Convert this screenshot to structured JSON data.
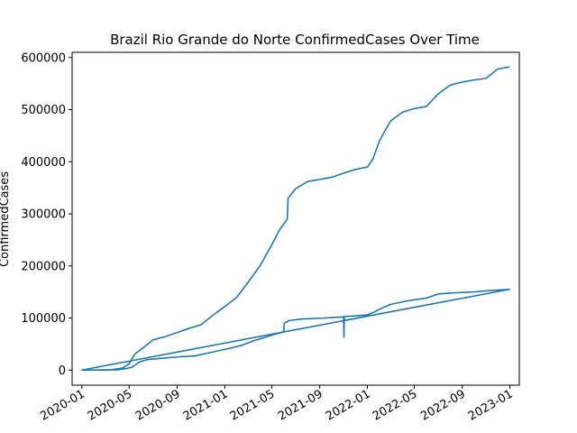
{
  "chart_data": {
    "type": "line",
    "title": "Brazil Rio Grande do Norte ConfirmedCases Over Time",
    "xlabel": "",
    "ylabel": "ConfirmedCases",
    "x_type": "date",
    "xlim": [
      "2019-12-07",
      "2023-01-25"
    ],
    "ylim": [
      -29000,
      610000
    ],
    "x_ticks": [
      "2020-01",
      "2020-05",
      "2020-09",
      "2021-01",
      "2021-05",
      "2021-09",
      "2022-01",
      "2022-05",
      "2022-09",
      "2023-01"
    ],
    "y_ticks": [
      0,
      100000,
      200000,
      300000,
      400000,
      500000,
      600000
    ],
    "y_tick_labels": [
      "0",
      "100000",
      "200000",
      "300000",
      "400000",
      "500000",
      "600000"
    ],
    "grid": false,
    "legend": "none",
    "line_color": "#1f77b4",
    "series": [
      {
        "points": [
          [
            "2020-01-01",
            0
          ],
          [
            "2020-03-01",
            0
          ],
          [
            "2020-04-01",
            500
          ],
          [
            "2020-04-25",
            3000
          ],
          [
            "2020-05-10",
            6000
          ],
          [
            "2020-05-25",
            15000
          ],
          [
            "2020-06-15",
            20000
          ],
          [
            "2020-07-15",
            22000
          ],
          [
            "2020-08-15",
            24000
          ],
          [
            "2020-09-15",
            26000
          ],
          [
            "2020-10-15",
            27000
          ],
          [
            "2020-11-15",
            32000
          ],
          [
            "2020-12-15",
            37000
          ],
          [
            "2021-01-15",
            42000
          ],
          [
            "2021-02-15",
            48000
          ],
          [
            "2021-03-15",
            56000
          ],
          [
            "2021-04-15",
            63000
          ],
          [
            "2021-05-05",
            68000
          ],
          [
            "2021-05-25",
            72000
          ],
          [
            "2021-06-01",
            74000
          ],
          [
            "2021-06-02",
            90000
          ],
          [
            "2021-06-15",
            95000
          ],
          [
            "2021-07-15",
            98000
          ],
          [
            "2021-08-15",
            99000
          ],
          [
            "2021-09-15",
            100000
          ],
          [
            "2021-10-15",
            101500
          ],
          [
            "2021-11-01",
            102000
          ],
          [
            "2021-11-02",
            63000
          ],
          [
            "2021-11-03",
            103000
          ],
          [
            "2021-12-01",
            104000
          ],
          [
            "2022-01-01",
            106000
          ],
          [
            "2022-01-20",
            112000
          ],
          [
            "2022-02-10",
            120000
          ],
          [
            "2022-03-01",
            126000
          ],
          [
            "2022-04-01",
            131000
          ],
          [
            "2022-05-01",
            135000
          ],
          [
            "2022-06-01",
            138000
          ],
          [
            "2022-07-01",
            146000
          ],
          [
            "2022-08-01",
            148000
          ],
          [
            "2022-09-01",
            149000
          ],
          [
            "2022-10-01",
            150000
          ],
          [
            "2022-11-15",
            153000
          ],
          [
            "2022-12-31",
            155000
          ],
          [
            "2020-01-01",
            0
          ],
          [
            "2020-03-15",
            500
          ],
          [
            "2020-04-15",
            4000
          ],
          [
            "2020-05-01",
            12000
          ],
          [
            "2020-05-15",
            30000
          ],
          [
            "2020-06-01",
            40000
          ],
          [
            "2020-07-01",
            58000
          ],
          [
            "2020-08-01",
            64000
          ],
          [
            "2020-09-01",
            72000
          ],
          [
            "2020-10-01",
            80000
          ],
          [
            "2020-11-01",
            87000
          ],
          [
            "2020-12-01",
            105000
          ],
          [
            "2021-01-01",
            122000
          ],
          [
            "2021-02-01",
            140000
          ],
          [
            "2021-03-01",
            168000
          ],
          [
            "2021-04-01",
            200000
          ],
          [
            "2021-05-01",
            240000
          ],
          [
            "2021-05-20",
            268000
          ],
          [
            "2021-06-10",
            290000
          ],
          [
            "2021-06-12",
            330000
          ],
          [
            "2021-07-01",
            348000
          ],
          [
            "2021-08-01",
            362000
          ],
          [
            "2021-09-01",
            366000
          ],
          [
            "2021-10-01",
            370000
          ],
          [
            "2021-11-01",
            378000
          ],
          [
            "2021-12-01",
            385000
          ],
          [
            "2022-01-01",
            390000
          ],
          [
            "2022-01-15",
            405000
          ],
          [
            "2022-02-01",
            440000
          ],
          [
            "2022-03-01",
            478000
          ],
          [
            "2022-04-01",
            495000
          ],
          [
            "2022-05-01",
            502000
          ],
          [
            "2022-06-01",
            506000
          ],
          [
            "2022-07-01",
            530000
          ],
          [
            "2022-08-01",
            547000
          ],
          [
            "2022-09-01",
            553000
          ],
          [
            "2022-10-01",
            557000
          ],
          [
            "2022-11-01",
            560000
          ],
          [
            "2022-12-01",
            578000
          ],
          [
            "2022-12-31",
            582000
          ]
        ]
      }
    ]
  }
}
